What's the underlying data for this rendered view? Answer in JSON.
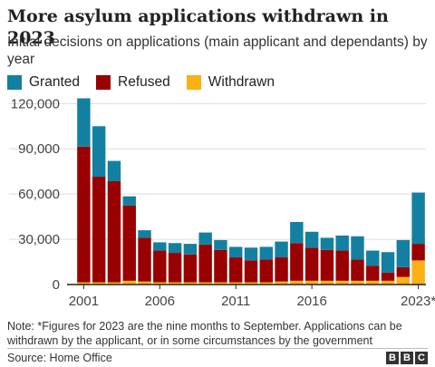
{
  "title": "More asylum applications withdrawn in 2023",
  "subtitle": "Initial decisions on applications (main applicant and dependants) by year",
  "note": "Note: *Figures for 2023 are the nine months to September. Applications can be withdrawn by the applicant, or in some circumstances by the government",
  "source": "Source: Home Office",
  "logo": {
    "letters": [
      "B",
      "B",
      "C"
    ]
  },
  "colors": {
    "granted": "#1380a1",
    "refused": "#990000",
    "withdrawn": "#fbb017",
    "grid": "#dddddd",
    "axis": "#222222"
  },
  "chart_data": {
    "type": "bar",
    "stacked": true,
    "categories": [
      "2001",
      "2002",
      "2003",
      "2004",
      "2005",
      "2006",
      "2007",
      "2008",
      "2009",
      "2010",
      "2011",
      "2012",
      "2013",
      "2014",
      "2015",
      "2016",
      "2017",
      "2018",
      "2019",
      "2020",
      "2021",
      "2022",
      "2023*"
    ],
    "x_tick_labels": [
      "2001",
      "",
      "",
      "",
      "",
      "2006",
      "",
      "",
      "",
      "",
      "2011",
      "",
      "",
      "",
      "",
      "2016",
      "",
      "",
      "",
      "",
      "",
      "",
      "2023*"
    ],
    "series": [
      {
        "name": "Withdrawn",
        "color": "#fbb017",
        "values": [
          1500,
          1500,
          1500,
          2500,
          2000,
          1500,
          1500,
          1500,
          1500,
          1500,
          1500,
          1500,
          1500,
          2000,
          2500,
          2500,
          2500,
          2500,
          2500,
          2500,
          2500,
          5000,
          16000
        ]
      },
      {
        "name": "Refused",
        "color": "#990000",
        "values": [
          90000,
          70000,
          67000,
          50000,
          29000,
          21000,
          19500,
          18500,
          25000,
          21500,
          16500,
          14500,
          15000,
          16000,
          25000,
          22000,
          20500,
          20000,
          14000,
          10000,
          5500,
          6500,
          11000
        ]
      },
      {
        "name": "Granted",
        "color": "#1380a1",
        "values": [
          32000,
          33500,
          13500,
          6000,
          5000,
          5500,
          6500,
          7000,
          8000,
          6500,
          7000,
          8500,
          8500,
          10500,
          14000,
          10500,
          8000,
          10000,
          15500,
          10000,
          13500,
          18000,
          34000
        ]
      }
    ],
    "legend_order": [
      "Granted",
      "Refused",
      "Withdrawn"
    ],
    "legend_position": "top-left",
    "y_ticks": [
      0,
      30000,
      60000,
      90000,
      120000
    ],
    "y_tick_labels": [
      "0",
      "30,000",
      "60,000",
      "90,000",
      "120,000"
    ],
    "ylim": [
      0,
      125000
    ],
    "grid": true
  }
}
